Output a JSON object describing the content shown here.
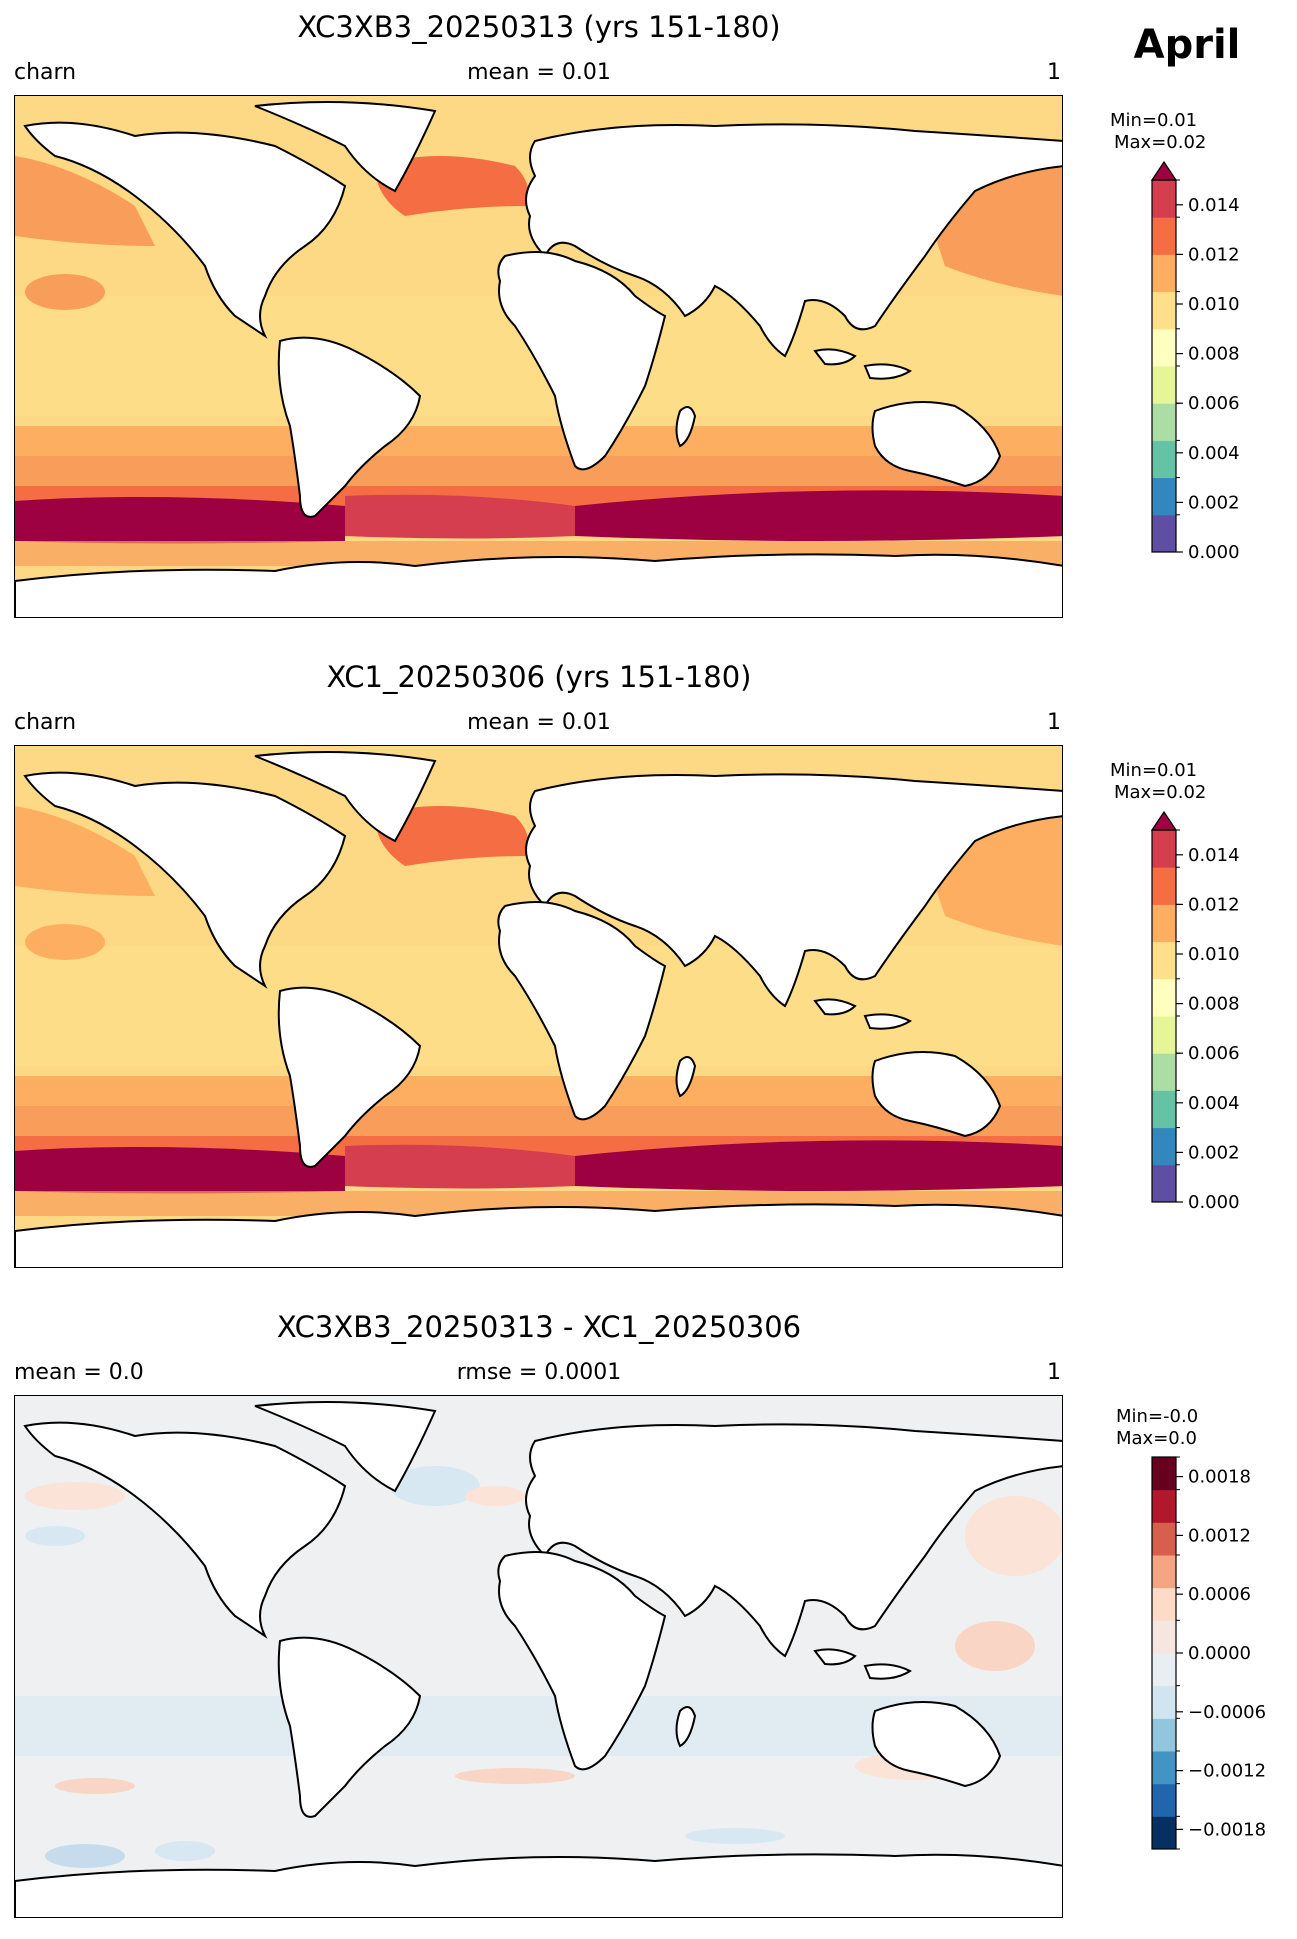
{
  "figure": {
    "month": "April"
  },
  "panels": [
    {
      "title": "XC3XB3_20250313 (yrs 151-180)",
      "left_label": "charn",
      "center_label": "mean = 0.01",
      "right_label": "1",
      "stats": {
        "min": "Min=0.01",
        "max": "Max=0.02"
      },
      "colorbar": {
        "ticks": [
          "0.000",
          "0.002",
          "0.004",
          "0.006",
          "0.008",
          "0.010",
          "0.012",
          "0.014"
        ],
        "colors": [
          "#5e4fa2",
          "#3288bd",
          "#66c2a5",
          "#abdda4",
          "#e6f598",
          "#ffffbf",
          "#fee08b",
          "#fdae61",
          "#f46d43",
          "#d53e4f"
        ],
        "extend": "max",
        "extend_color": "#9e0142"
      },
      "background_color": "#fdd985"
    },
    {
      "title": "XC1_20250306 (yrs 151-180)",
      "left_label": "charn",
      "center_label": "mean = 0.01",
      "right_label": "1",
      "stats": {
        "min": "Min=0.01",
        "max": "Max=0.02"
      },
      "colorbar": {
        "ticks": [
          "0.000",
          "0.002",
          "0.004",
          "0.006",
          "0.008",
          "0.010",
          "0.012",
          "0.014"
        ],
        "colors": [
          "#5e4fa2",
          "#3288bd",
          "#66c2a5",
          "#abdda4",
          "#e6f598",
          "#ffffbf",
          "#fee08b",
          "#fdae61",
          "#f46d43",
          "#d53e4f"
        ],
        "extend": "max",
        "extend_color": "#9e0142"
      },
      "background_color": "#fdd985"
    },
    {
      "title": "XC3XB3_20250313 - XC1_20250306",
      "left_label": "mean = 0.0",
      "center_label": "rmse = 0.0001",
      "right_label": "1",
      "stats": {
        "min": "Min=-0.0",
        "max": "Max=0.0"
      },
      "colorbar": {
        "ticks": [
          "−0.0018",
          "−0.0012",
          "−0.0006",
          "0.0000",
          "0.0006",
          "0.0012",
          "0.0018"
        ],
        "colors": [
          "#053061",
          "#2166ac",
          "#4393c3",
          "#92c5de",
          "#d1e5f0",
          "#e8eef2",
          "#f5e6e0",
          "#fddbc7",
          "#f4a582",
          "#d6604d",
          "#b2182b",
          "#67001f"
        ],
        "extend": "none"
      },
      "background_color": "#eef0f1"
    }
  ]
}
